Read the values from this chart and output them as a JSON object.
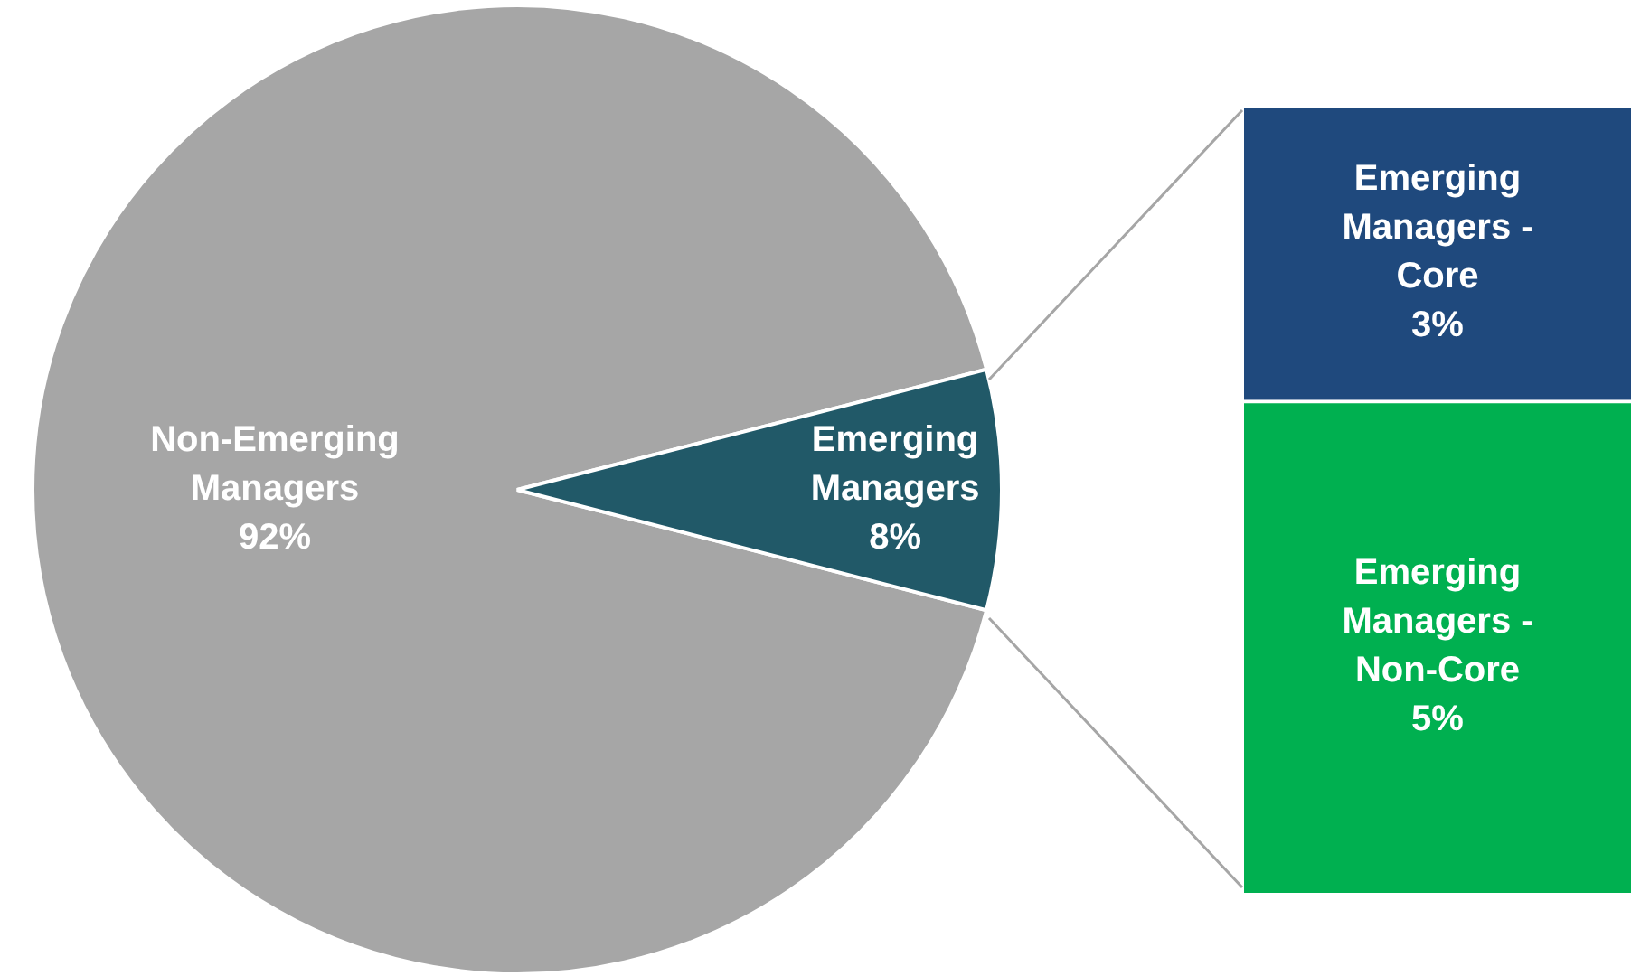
{
  "chart_data": [
    {
      "type": "pie",
      "categories": [
        "Non-Emerging Managers",
        "Emerging Managers"
      ],
      "values": [
        92,
        8
      ],
      "colors": [
        "#a6a6a6",
        "#215968"
      ],
      "value_labels": [
        "92%",
        "8%"
      ],
      "legend": false
    },
    {
      "type": "bar",
      "stacked": true,
      "categories": [
        null
      ],
      "legend": false,
      "series": [
        {
          "name": "Emerging Managers - Non-Core",
          "color": "#00b050",
          "values": [
            5
          ],
          "value_labels": [
            "5%"
          ]
        },
        {
          "name": "Emerging Managers - Core",
          "color": "#1f497d",
          "values": [
            3
          ],
          "value_labels": [
            "3%"
          ]
        }
      ]
    }
  ]
}
